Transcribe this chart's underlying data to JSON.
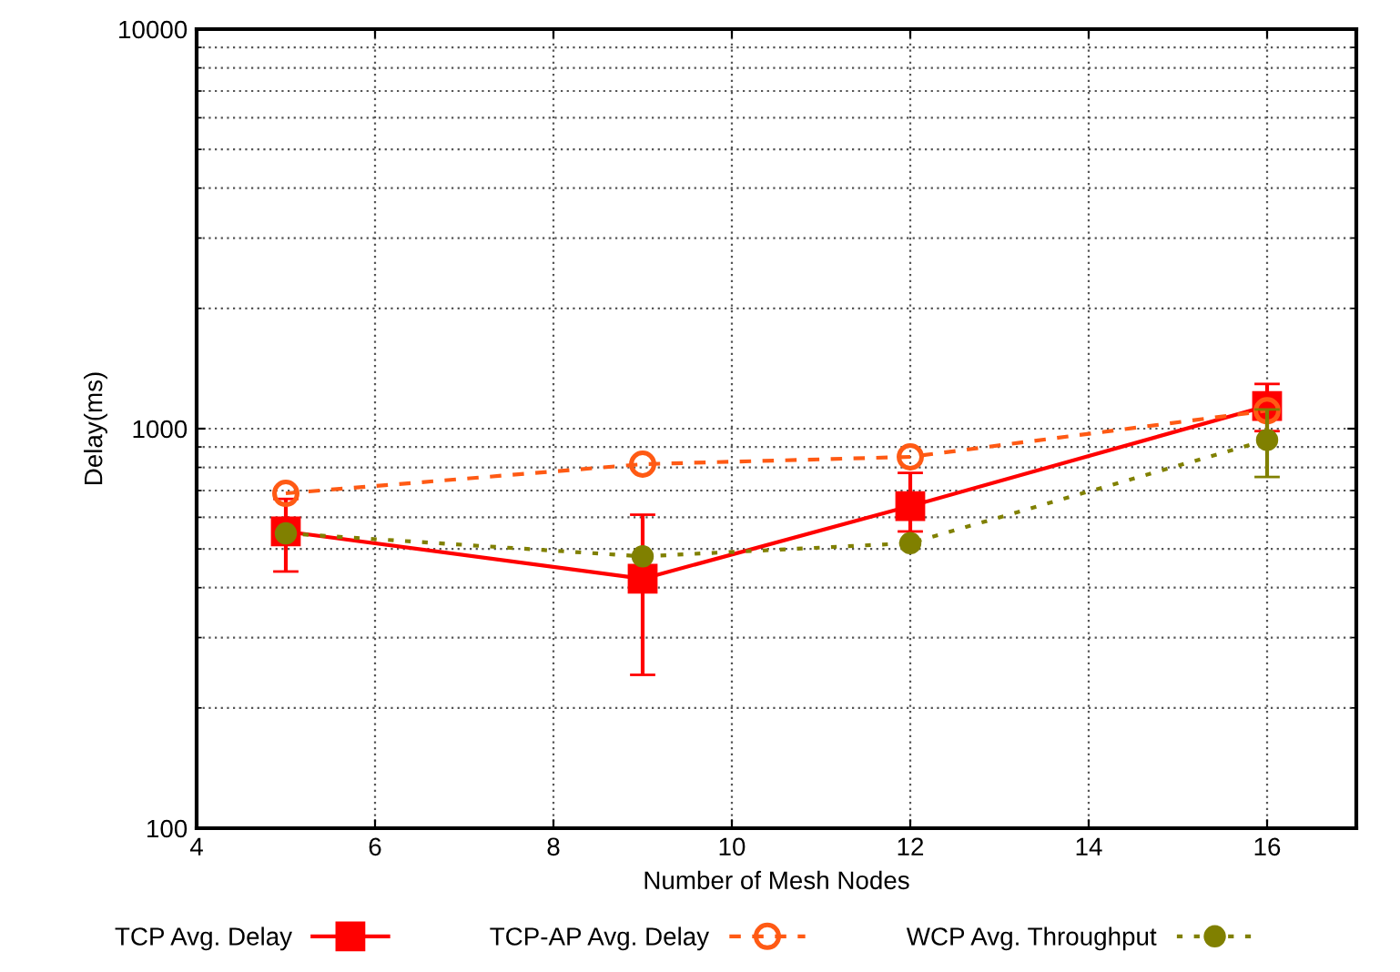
{
  "chart_data": {
    "type": "line",
    "xlabel": "Number of Mesh Nodes",
    "ylabel": "Delay(ms)",
    "x": [
      5,
      9,
      12,
      16
    ],
    "log": "y",
    "xlim": [
      4,
      17
    ],
    "xticks": [
      4,
      6,
      8,
      10,
      12,
      14,
      16
    ],
    "ylim": [
      100,
      10000
    ],
    "yticks": [
      100,
      1000,
      10000
    ],
    "grid": true,
    "legend": "bottom",
    "series": [
      {
        "name": "TCP Avg. Delay",
        "color": "#ff0000",
        "values": [
          553,
          421,
          640,
          1140
        ],
        "errors": [
          114,
          [
            242,
            609
          ],
          [
            553,
            775
          ],
          154
        ],
        "marker": "square",
        "line_style": "solid"
      },
      {
        "name": "TCP-AP Avg. Delay",
        "color": "#ff5a14",
        "values": [
          689,
          815,
          850,
          1109
        ],
        "marker": "circle",
        "line_style": "dashed"
      },
      {
        "name": "WCP Avg. Throughput",
        "color": "#808000",
        "values": [
          547,
          479,
          517,
          937
        ],
        "errors": [
          null,
          null,
          null,
          180
        ],
        "marker": "circle",
        "line_style": "dotted"
      }
    ]
  }
}
